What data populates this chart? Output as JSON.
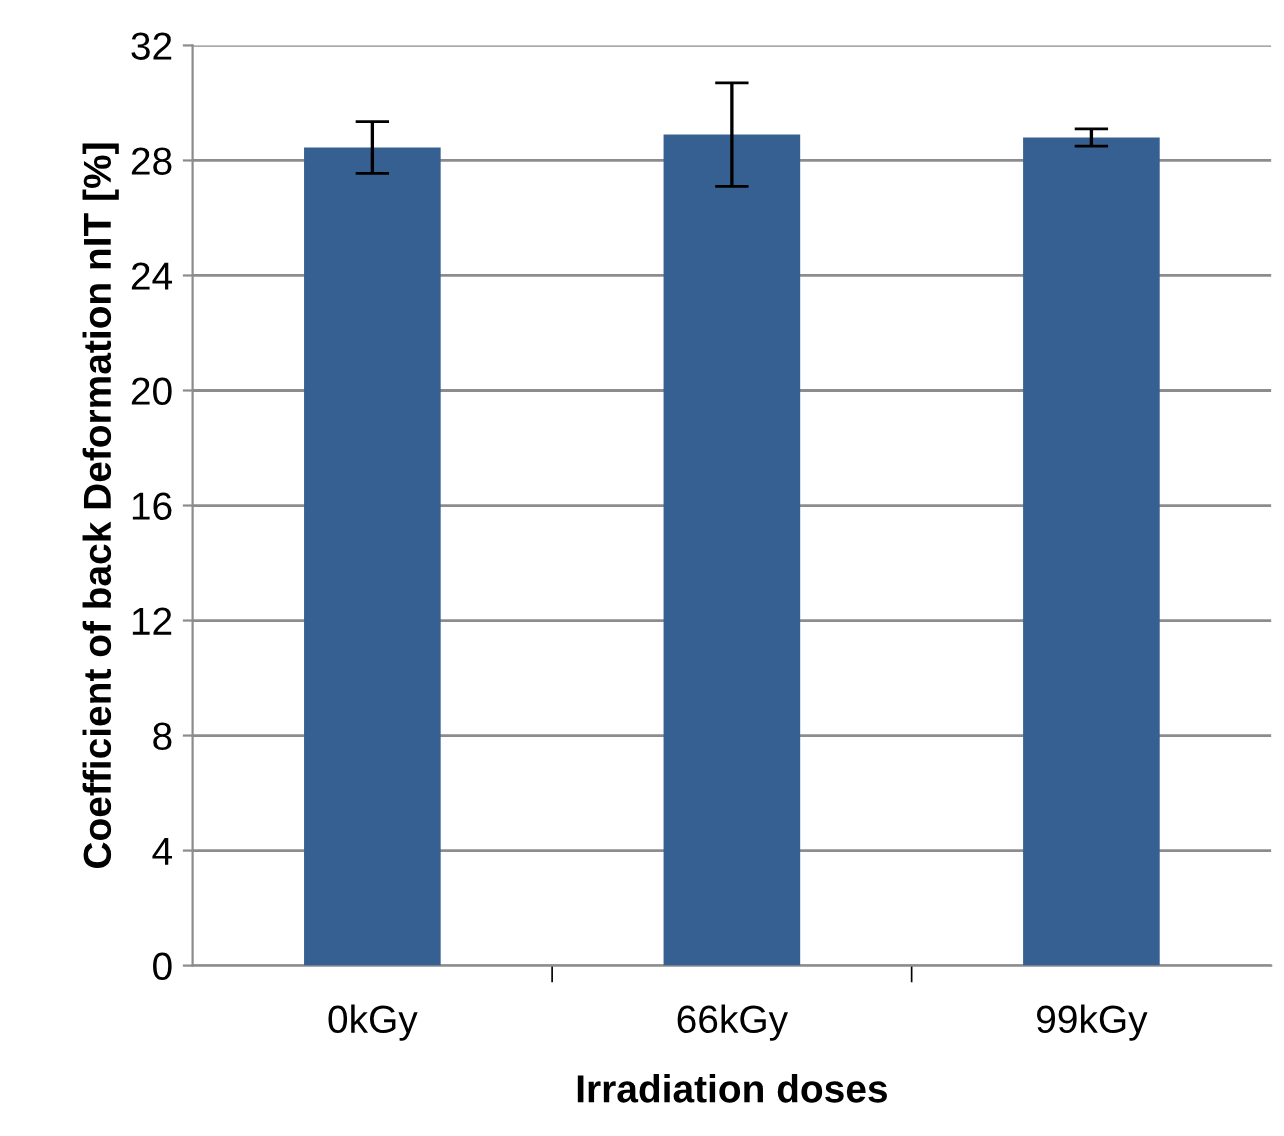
{
  "chart_data": {
    "type": "bar",
    "xlabel": "Irradiation doses",
    "ylabel": "Coefficient of back Deformation nIT [%]",
    "categories": [
      "0kGy",
      "66kGy",
      "99kGy"
    ],
    "values": [
      28.45,
      28.9,
      28.8
    ],
    "errors": [
      0.9,
      1.8,
      0.3
    ],
    "color": "#366092",
    "ylim": [
      0,
      32
    ],
    "yticks": [
      0,
      4,
      8,
      12,
      16,
      20,
      24,
      28,
      32
    ],
    "grid": "y"
  }
}
